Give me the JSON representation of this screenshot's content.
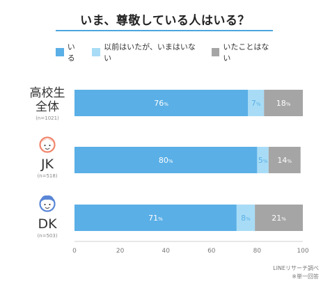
{
  "chart_data": {
    "type": "bar",
    "orientation": "horizontal",
    "stacked": true,
    "title": "いま、尊敬している人はいる？",
    "categories": [
      {
        "label_lines": [
          "高校生",
          "全体"
        ],
        "n": "(n=1021)",
        "icon": ""
      },
      {
        "label_lines": [
          "JK"
        ],
        "n": "(n=518)",
        "icon": "girl-face-icon"
      },
      {
        "label_lines": [
          "DK"
        ],
        "n": "(n=503)",
        "icon": "boy-face-icon"
      }
    ],
    "series": [
      {
        "name": "いる",
        "values": [
          76,
          80,
          71
        ],
        "color": "#5aafe6",
        "label_color": "#ffffff"
      },
      {
        "name": "以前はいたが、いまはいない",
        "values": [
          7,
          5,
          8
        ],
        "color": "#a8dcf6",
        "label_color": "#5aafe6"
      },
      {
        "name": "いたことはない",
        "values": [
          18,
          14,
          21
        ],
        "color": "#a5a5a5",
        "label_color": "#ffffff"
      }
    ],
    "value_suffix": "%",
    "xlim": [
      0,
      100
    ],
    "xticks": [
      0,
      20,
      40,
      60,
      80,
      100
    ],
    "grid": false,
    "legend_position": "top"
  },
  "colors": {
    "accent": "#5aafe6",
    "title_rule": "#4aa6df"
  },
  "source_lines": [
    "LINEリサーチ調べ",
    "※単一回答"
  ]
}
